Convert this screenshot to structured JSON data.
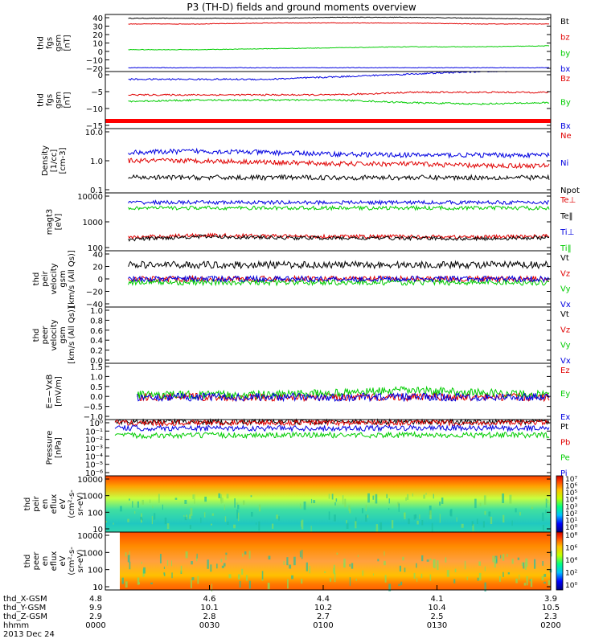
{
  "title": "P3 (TH-D) fields and ground moments overview",
  "chart_data": [
    {
      "type": "line",
      "ylabel": [
        "thd",
        "fgs",
        "gsm",
        "[nT]"
      ],
      "yticks": [
        "40",
        "30",
        "20",
        "10",
        "0",
        "−10",
        "−20"
      ],
      "ylim": [
        -20,
        40
      ],
      "series": [
        {
          "name": "Bt",
          "color": "#000000",
          "values": [
            36,
            36,
            36,
            37,
            37,
            36,
            35
          ]
        },
        {
          "name": "bz",
          "color": "#e00000",
          "values": [
            30,
            30,
            31,
            31,
            31,
            30,
            30
          ]
        },
        {
          "name": "by",
          "color": "#00cc00",
          "values": [
            3,
            3,
            4,
            5,
            6,
            6,
            7
          ]
        },
        {
          "name": "bx",
          "color": "#0000e0",
          "values": [
            -16,
            -16,
            -16,
            -16,
            -16,
            -16,
            -16
          ]
        }
      ]
    },
    {
      "type": "line",
      "ylabel": [
        "thd",
        "fgs",
        "gsm",
        "[nT]"
      ],
      "yticks": [
        "0",
        "−5",
        "−10",
        "−15"
      ],
      "ylim": [
        -19,
        3
      ],
      "series": [
        {
          "name": "Bz",
          "color": "#e00000",
          "values": [
            -6,
            -6,
            -6,
            -6,
            -5,
            -5,
            -5
          ]
        },
        {
          "name": "By",
          "color": "#00cc00",
          "values": [
            -8.5,
            -8,
            -8,
            -8,
            -9,
            -9.5,
            -9
          ]
        },
        {
          "name": "Bx",
          "color": "#0000e0",
          "values": [
            0,
            0,
            0,
            1,
            2,
            3,
            3.5
          ]
        }
      ]
    },
    {
      "type": "line",
      "log": true,
      "ylabel": [
        "Density",
        "[1/cc]",
        "[cm-3]"
      ],
      "yticks": [
        "10.0",
        "1.0",
        "0.1"
      ],
      "ylim": [
        0.1,
        10
      ],
      "series": [
        {
          "name": "Ne",
          "color": "#e00000",
          "values": [
            1.0,
            1.0,
            0.9,
            0.8,
            0.8,
            0.7,
            0.7
          ]
        },
        {
          "name": "Ni",
          "color": "#0000e0",
          "values": [
            1.8,
            2.0,
            1.8,
            1.6,
            1.5,
            1.5,
            1.5
          ]
        },
        {
          "name": "Npot",
          "color": "#000000",
          "values": [
            0.3,
            0.3,
            0.3,
            0.3,
            0.3,
            0.3,
            0.3
          ]
        }
      ]
    },
    {
      "type": "line",
      "log": true,
      "ylabel": [
        "magt3",
        "[eV]"
      ],
      "yticks": [
        "10000",
        "1000",
        "100"
      ],
      "ylim": [
        60,
        12000
      ],
      "series": [
        {
          "name": "Te⊥",
          "color": "#e00000",
          "values": [
            200,
            250,
            230,
            220,
            220,
            210,
            230
          ]
        },
        {
          "name": "Te‖",
          "color": "#000000",
          "values": [
            170,
            220,
            200,
            190,
            190,
            180,
            200
          ]
        },
        {
          "name": "Ti⊥",
          "color": "#0000e0",
          "values": [
            5000,
            5000,
            5000,
            5000,
            5000,
            5000,
            5000
          ]
        },
        {
          "name": "Ti‖",
          "color": "#00cc00",
          "values": [
            3000,
            3000,
            3000,
            3000,
            3000,
            3000,
            3000
          ]
        }
      ]
    },
    {
      "type": "line",
      "ylabel": [
        "thd",
        "peir",
        "velocity",
        "gsm",
        "[km/s (All Qs)]"
      ],
      "yticks": [
        "40",
        "20",
        "0",
        "−20",
        "−40"
      ],
      "ylim": [
        -40,
        40
      ],
      "series": [
        {
          "name": "Vt",
          "color": "#000000",
          "values": [
            20,
            20,
            20,
            20,
            20,
            20,
            20
          ]
        },
        {
          "name": "Vz",
          "color": "#e00000",
          "values": [
            0,
            0,
            0,
            0,
            0,
            0,
            0
          ]
        },
        {
          "name": "Vy",
          "color": "#00cc00",
          "values": [
            -5,
            -5,
            -5,
            -5,
            -5,
            -5,
            -5
          ]
        },
        {
          "name": "Vx",
          "color": "#0000e0",
          "values": [
            0,
            0,
            0,
            0,
            0,
            0,
            0
          ]
        }
      ]
    },
    {
      "type": "line",
      "ylabel": [
        "thd",
        "peer",
        "velocity",
        "gsm",
        "[km/s (All Qs)]"
      ],
      "yticks": [
        "1.0",
        "0.8",
        "0.6",
        "0.4",
        "0.2",
        "0.0"
      ],
      "ylim": [
        0,
        1
      ],
      "series": [
        {
          "name": "Vt",
          "color": "#000000",
          "values": []
        },
        {
          "name": "Vz",
          "color": "#e00000",
          "values": []
        },
        {
          "name": "Vy",
          "color": "#00cc00",
          "values": []
        },
        {
          "name": "Vx",
          "color": "#0000e0",
          "values": []
        }
      ]
    },
    {
      "type": "line",
      "ylabel": [
        "E=−VxB",
        "[mV/m]"
      ],
      "yticks": [
        "1.5",
        "1.0",
        "0.5",
        "0.0",
        "−0.5",
        "−1.0"
      ],
      "ylim": [
        -1,
        1.5
      ],
      "series": [
        {
          "name": "Ez",
          "color": "#e00000",
          "values": [
            0,
            0,
            0,
            0,
            0,
            0,
            0
          ]
        },
        {
          "name": "Ey",
          "color": "#00cc00",
          "values": [
            0.1,
            0.1,
            0.1,
            0.2,
            0.3,
            0.2,
            0.1
          ]
        },
        {
          "name": "Ex",
          "color": "#0000e0",
          "values": [
            0,
            0,
            0,
            0,
            0,
            0,
            0
          ]
        }
      ]
    },
    {
      "type": "line",
      "log": true,
      "ylabel": [
        "Pressure",
        "[nPa]"
      ],
      "yticks": [
        "10⁰",
        "10⁻¹",
        "10⁻²",
        "10⁻³",
        "10⁻⁴",
        "10⁻⁵",
        "10⁻⁶"
      ],
      "ylim": [
        1e-06,
        1
      ],
      "series": [
        {
          "name": "Pt",
          "color": "#000000",
          "values": [
            0.6,
            0.6,
            0.6,
            0.6,
            0.6,
            0.6,
            0.6
          ]
        },
        {
          "name": "Pb",
          "color": "#e00000",
          "values": [
            0.45,
            0.45,
            0.45,
            0.45,
            0.45,
            0.45,
            0.45
          ]
        },
        {
          "name": "Pe",
          "color": "#00cc00",
          "values": [
            0.02,
            0.02,
            0.022,
            0.022,
            0.022,
            0.022,
            0.022
          ]
        },
        {
          "name": "Pi",
          "color": "#0000e0",
          "values": [
            0.12,
            0.12,
            0.12,
            0.12,
            0.12,
            0.12,
            0.12
          ]
        }
      ]
    },
    {
      "type": "heatmap",
      "ylabel": [
        "thd",
        "peir",
        "en",
        "eflux",
        "eV",
        "(cm²-s-",
        "sr-eV)"
      ],
      "yticks": [
        "10000",
        "1000",
        "100",
        "10"
      ],
      "colorbar": [
        "10⁷",
        "10⁶",
        "10⁵",
        "10⁴",
        "10³",
        "10²",
        "10¹",
        "10⁰"
      ]
    },
    {
      "type": "heatmap",
      "ylabel": [
        "thd",
        "peer",
        "en",
        "eflux",
        "eV",
        "(cm²-s-",
        "sr-eV)"
      ],
      "yticks": [
        "10000",
        "1000",
        "100",
        "10"
      ],
      "colorbar": [
        "10⁸",
        "10⁶",
        "10⁴",
        "10²",
        "10⁰"
      ]
    }
  ],
  "xaxis": {
    "row_labels": [
      "thd_X-GSM",
      "thd_Y-GSM",
      "thd_Z-GSM",
      "hhmm",
      "2013 Dec 24"
    ],
    "ticks": [
      {
        "x": "4.8",
        "y": "9.9",
        "z": "2.9",
        "t": "0000"
      },
      {
        "x": "4.6",
        "y": "10.1",
        "z": "2.8",
        "t": "0030"
      },
      {
        "x": "4.4",
        "y": "10.2",
        "z": "2.7",
        "t": "0100"
      },
      {
        "x": "4.1",
        "y": "10.4",
        "z": "2.5",
        "t": "0130"
      },
      {
        "x": "3.9",
        "y": "10.5",
        "z": "2.3",
        "t": "0200"
      }
    ]
  }
}
